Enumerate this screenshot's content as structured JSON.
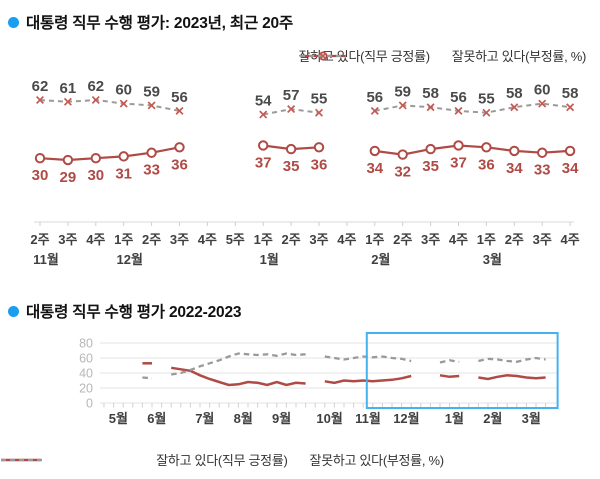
{
  "colors": {
    "approve": "#af4a45",
    "disapprove_line": "#9a9a9a",
    "disapprove_marker": "#c45a53",
    "disapprove_label": "#4a4a4a",
    "axis_line": "#d8d8d8",
    "grid": "#e3e3e3",
    "tick": "#cfcfcf",
    "ytick_text": "#b7b7b7",
    "xtick_text": "#3f3f3f",
    "highlight": "#44b2ef",
    "bullet": "#1b9df0",
    "title_text": "#111111"
  },
  "chart_data": [
    {
      "type": "line",
      "title": "대통령 직무 수행 평가: 2023년, 최근 20주",
      "x_week_labels": [
        "2주",
        "3주",
        "4주",
        "1주",
        "2주",
        "3주",
        "4주",
        "5주",
        "1주",
        "2주",
        "3주",
        "4주",
        "1주",
        "2주",
        "3주",
        "4주",
        "1주",
        "2주",
        "3주",
        "4주"
      ],
      "x_month_labels": [
        {
          "label": "11월",
          "week_index": 0
        },
        {
          "label": "12월",
          "week_index": 3
        },
        {
          "label": "1월",
          "week_index": 8
        },
        {
          "label": "2월",
          "week_index": 12
        },
        {
          "label": "3월",
          "week_index": 16
        }
      ],
      "value_labels_shown": true,
      "legend_position": "top",
      "series": [
        {
          "name": "잘하고 있다(직무 긍정률)",
          "style": "solid",
          "marker": "circle",
          "values": [
            30,
            29,
            30,
            31,
            33,
            36,
            null,
            null,
            37,
            35,
            36,
            null,
            34,
            32,
            35,
            37,
            36,
            34,
            33,
            34
          ]
        },
        {
          "name": "잘못하고 있다(부정률, %)",
          "style": "dashed",
          "marker": "x",
          "values": [
            62,
            61,
            62,
            60,
            59,
            56,
            null,
            null,
            54,
            57,
            55,
            null,
            56,
            59,
            58,
            56,
            55,
            58,
            60,
            58
          ]
        }
      ]
    },
    {
      "type": "line",
      "title": "대통령 직무 수행 평가 2022-2023",
      "ylim": [
        0,
        80
      ],
      "yticks": [
        0,
        20,
        40,
        60,
        80
      ],
      "grid": true,
      "legend_position": "bottom",
      "months": [
        {
          "label": "5월",
          "weeks": 4
        },
        {
          "label": "6월",
          "weeks": 5
        },
        {
          "label": "7월",
          "weeks": 4
        },
        {
          "label": "8월",
          "weeks": 4
        },
        {
          "label": "9월",
          "weeks": 5
        },
        {
          "label": "10월",
          "weeks": 4
        },
        {
          "label": "11월",
          "weeks": 4
        },
        {
          "label": "12월",
          "weeks": 5
        },
        {
          "label": "1월",
          "weeks": 4
        },
        {
          "label": "2월",
          "weeks": 4
        },
        {
          "label": "3월",
          "weeks": 4
        }
      ],
      "series": [
        {
          "name": "잘하고 있다(직무 긍정률)",
          "style": "solid",
          "values": [
            null,
            null,
            null,
            null,
            53,
            53,
            null,
            47,
            45,
            43,
            37,
            32,
            28,
            24,
            25,
            28,
            27,
            24,
            28,
            24,
            27,
            26,
            null,
            29,
            27,
            30,
            29,
            30,
            29,
            30,
            31,
            33,
            36,
            null,
            null,
            37,
            35,
            36,
            null,
            34,
            32,
            35,
            37,
            36,
            34,
            33,
            34
          ]
        },
        {
          "name": "잘못하고 있다(부정률, %)",
          "style": "dashed",
          "values": [
            null,
            null,
            null,
            null,
            34,
            33,
            null,
            38,
            40,
            44,
            49,
            53,
            57,
            62,
            66,
            65,
            64,
            65,
            63,
            66,
            64,
            65,
            null,
            62,
            60,
            58,
            60,
            62,
            61,
            62,
            60,
            59,
            56,
            null,
            null,
            54,
            57,
            55,
            null,
            56,
            59,
            58,
            56,
            55,
            58,
            60,
            58
          ]
        }
      ],
      "highlight_box": {
        "start_week": 28,
        "end_week": 46
      }
    }
  ]
}
